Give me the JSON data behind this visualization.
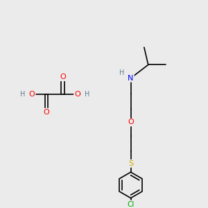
{
  "background_color": "#EBEBEB",
  "bond_color": "#000000",
  "atom_colors": {
    "O": "#FF0000",
    "N": "#0000FF",
    "S": "#CCAA00",
    "Cl": "#00AA00",
    "H": "#5F8090",
    "C": "#000000"
  },
  "figsize": [
    3.0,
    3.0
  ],
  "dpi": 100
}
